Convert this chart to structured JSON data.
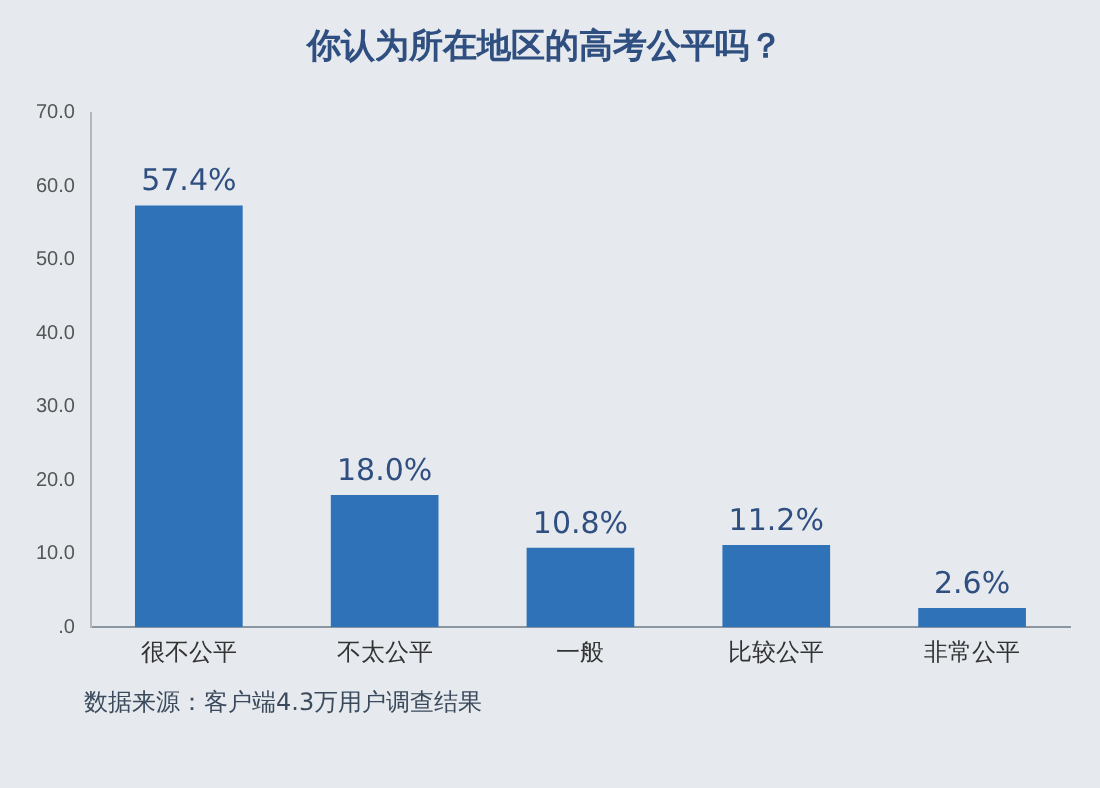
{
  "chart_data": {
    "type": "bar",
    "title": "你认为所在地区的高考公平吗？",
    "categories": [
      "很不公平",
      "不太公平",
      "一般",
      "比较公平",
      "非常公平"
    ],
    "values": [
      57.4,
      18.0,
      10.8,
      11.2,
      2.6
    ],
    "value_labels": [
      "57.4%",
      "18.0%",
      "10.8%",
      "11.2%",
      "2.6%"
    ],
    "color": "#2f72b8",
    "ylim": [
      0,
      70
    ],
    "yticks": [
      {
        "value": 0,
        "label": ".0"
      },
      {
        "value": 10,
        "label": "10.0"
      },
      {
        "value": 20,
        "label": "20.0"
      },
      {
        "value": 30,
        "label": "30.0"
      },
      {
        "value": 40,
        "label": "40.0"
      },
      {
        "value": 50,
        "label": "50.0"
      },
      {
        "value": 60,
        "label": "60.0"
      },
      {
        "value": 70,
        "label": "70.0"
      }
    ],
    "grid": false,
    "legend": false,
    "annotations": [
      "数据来源：客户端4.3万用户调查结果"
    ]
  }
}
